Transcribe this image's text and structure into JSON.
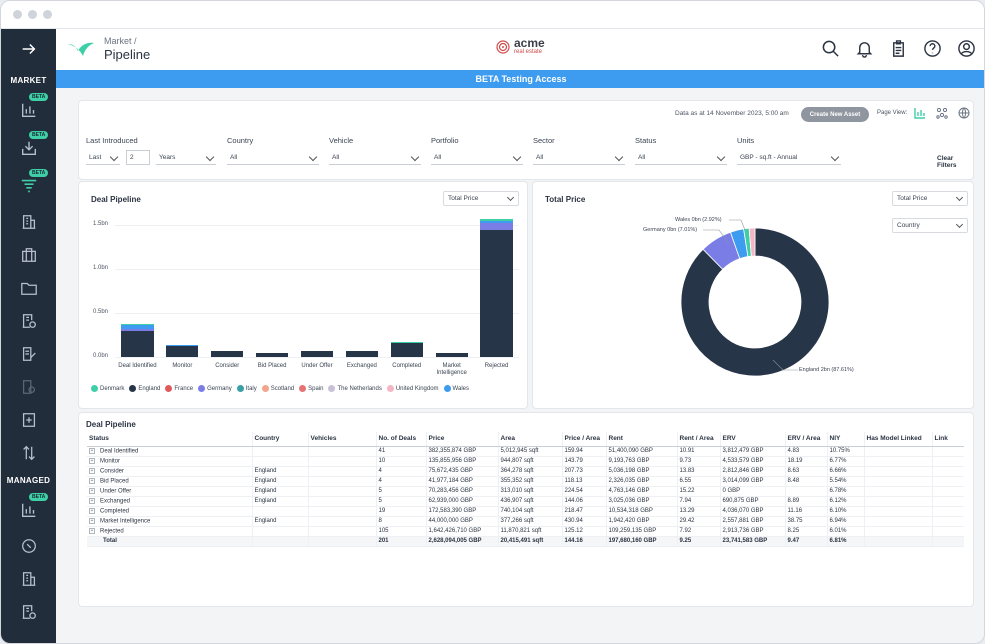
{
  "sidebar": {
    "market_label": "MARKET",
    "managed_label": "MANAGED",
    "beta_label": "BETA"
  },
  "header": {
    "crumb_parent": "Market",
    "crumb_separator": "/",
    "crumb_current": "Pipeline",
    "brand_name": "acme",
    "brand_sub": "real estate"
  },
  "beta_bar": "BETA Testing Access",
  "filters": {
    "as_of": "Data as at 14 November 2023, 5:00 am",
    "create_button": "Create New Asset",
    "page_view_label": "Page View:",
    "last_introduced_label": "Last Introduced",
    "last_value": "Last",
    "number_value": "2",
    "period_value": "Years",
    "country_label": "Country",
    "country_value": "All",
    "vehicle_label": "Vehicle",
    "vehicle_value": "All",
    "portfolio_label": "Portfolio",
    "portfolio_value": "All",
    "sector_label": "Sector",
    "sector_value": "All",
    "status_label": "Status",
    "status_value": "All",
    "units_label": "Units",
    "units_value": "GBP - sq.ft - Annual",
    "clear_filters": "Clear Filters"
  },
  "pipeline_chart": {
    "title": "Deal Pipeline",
    "dropdown": "Total Price"
  },
  "total_price_chart": {
    "title": "Total Price",
    "dropdown1": "Total Price",
    "dropdown2": "Country",
    "label_wales": "Wales 0bn (2.92%)",
    "label_germany": "Germany 0bn (7.01%)",
    "label_england": "England 2bn (87.61%)"
  },
  "chart_data": [
    {
      "type": "bar",
      "stacked": true,
      "title": "Deal Pipeline",
      "categories": [
        "Deal Identified",
        "Monitor",
        "Consider",
        "Bid Placed",
        "Under Offer",
        "Exchanged",
        "Completed",
        "Market Intelligence",
        "Rejected"
      ],
      "y_ticks": [
        "0.0bn",
        "0.5bn",
        "1.0bn",
        "1.5bn"
      ],
      "ylim": [
        0,
        1.65
      ],
      "series": [
        {
          "name": "England",
          "color": "#273548",
          "values": [
            0.3,
            0.13,
            0.07,
            0.045,
            0.07,
            0.065,
            0.16,
            0.045,
            1.45
          ]
        },
        {
          "name": "Germany",
          "color": "#7b7de6",
          "values": [
            0.02,
            0,
            0,
            0,
            0,
            0,
            0,
            0,
            0.07
          ]
        },
        {
          "name": "Wales",
          "color": "#3d9bf0",
          "values": [
            0.05,
            0.005,
            0,
            0,
            0,
            0,
            0,
            0,
            0.03
          ]
        },
        {
          "name": "Denmark",
          "color": "#3fcfa6",
          "values": [
            0.01,
            0,
            0,
            0,
            0,
            0,
            0.013,
            0,
            0.02
          ]
        }
      ],
      "legend": [
        "Denmark",
        "England",
        "France",
        "Germany",
        "Italy",
        "Scotland",
        "Spain",
        "The Netherlands",
        "United Kingdom",
        "Wales"
      ],
      "legend_colors": [
        "#3fcfa6",
        "#273548",
        "#e05a5a",
        "#7b7de6",
        "#3aa0a8",
        "#f2a58a",
        "#e57373",
        "#c9c0d8",
        "#f5b5c5",
        "#3d9bf0"
      ]
    },
    {
      "type": "pie",
      "donut": true,
      "title": "Total Price",
      "slices": [
        {
          "label": "England",
          "value": 87.61,
          "color": "#273548"
        },
        {
          "label": "Germany",
          "value": 7.01,
          "color": "#7b7de6"
        },
        {
          "label": "Wales",
          "value": 2.92,
          "color": "#3d9bf0"
        },
        {
          "label": "Denmark",
          "value": 1.2,
          "color": "#3fcfa6"
        },
        {
          "label": "United Kingdom",
          "value": 1.26,
          "color": "#f5b5c5"
        }
      ]
    },
    {
      "type": "table",
      "title": "Deal Pipeline",
      "headers": [
        "Status",
        "Country",
        "Vehicles",
        "No. of Deals",
        "Price",
        "Area",
        "Price / Area",
        "Rent",
        "Rent / Area",
        "ERV",
        "ERV / Area",
        "NIY",
        "Has Model Linked",
        "Link"
      ],
      "rows": [
        [
          "Deal Identified",
          "",
          "",
          "41",
          "382,355,874 GBP",
          "5,012,945 sqft",
          "159.94",
          "51,400,090 GBP",
          "10.91",
          "3,812,479 GBP",
          "4.83",
          "10.75%",
          "",
          ""
        ],
        [
          "Monitor",
          "",
          "",
          "10",
          "135,855,956 GBP",
          "944,807 sqft",
          "143.79",
          "9,193,763 GBP",
          "9.73",
          "4,533,579 GBP",
          "18.19",
          "6.77%",
          "",
          ""
        ],
        [
          "Consider",
          "England",
          "",
          "4",
          "75,672,435 GBP",
          "364,278 sqft",
          "207.73",
          "5,036,198 GBP",
          "13.83",
          "2,812,846 GBP",
          "8.63",
          "6.66%",
          "",
          ""
        ],
        [
          "Bid Placed",
          "England",
          "",
          "4",
          "41,977,184 GBP",
          "355,352 sqft",
          "118.13",
          "2,326,035 GBP",
          "6.55",
          "3,014,099 GBP",
          "8.48",
          "5.54%",
          "",
          ""
        ],
        [
          "Under Offer",
          "England",
          "",
          "5",
          "70,283,456 GBP",
          "313,010 sqft",
          "224.54",
          "4,763,146 GBP",
          "15.22",
          "0 GBP",
          "",
          "6.78%",
          "",
          ""
        ],
        [
          "Exchanged",
          "England",
          "",
          "5",
          "62,939,000 GBP",
          "436,907 sqft",
          "144.06",
          "3,025,036 GBP",
          "7.94",
          "690,875 GBP",
          "8.89",
          "6.12%",
          "",
          ""
        ],
        [
          "Completed",
          "",
          "",
          "19",
          "172,583,390 GBP",
          "740,104 sqft",
          "218.47",
          "10,534,318 GBP",
          "13.29",
          "4,036,070 GBP",
          "11.16",
          "6.10%",
          "",
          ""
        ],
        [
          "Market Intelligence",
          "England",
          "",
          "8",
          "44,000,000 GBP",
          "377,266 sqft",
          "430.94",
          "1,942,420 GBP",
          "29.42",
          "2,557,881 GBP",
          "38.75",
          "6.94%",
          "",
          ""
        ],
        [
          "Rejected",
          "",
          "",
          "105",
          "1,642,426,710 GBP",
          "11,870,821 sqft",
          "125.12",
          "109,259,135 GBP",
          "7.92",
          "2,913,736 GBP",
          "8.25",
          "6.01%",
          "",
          ""
        ]
      ],
      "total": [
        "Total",
        "",
        "",
        "201",
        "2,628,094,005 GBP",
        "20,415,491 sqft",
        "144.16",
        "197,680,160 GBP",
        "9.25",
        "23,741,583 GBP",
        "9.47",
        "6.81%",
        "",
        ""
      ]
    }
  ]
}
